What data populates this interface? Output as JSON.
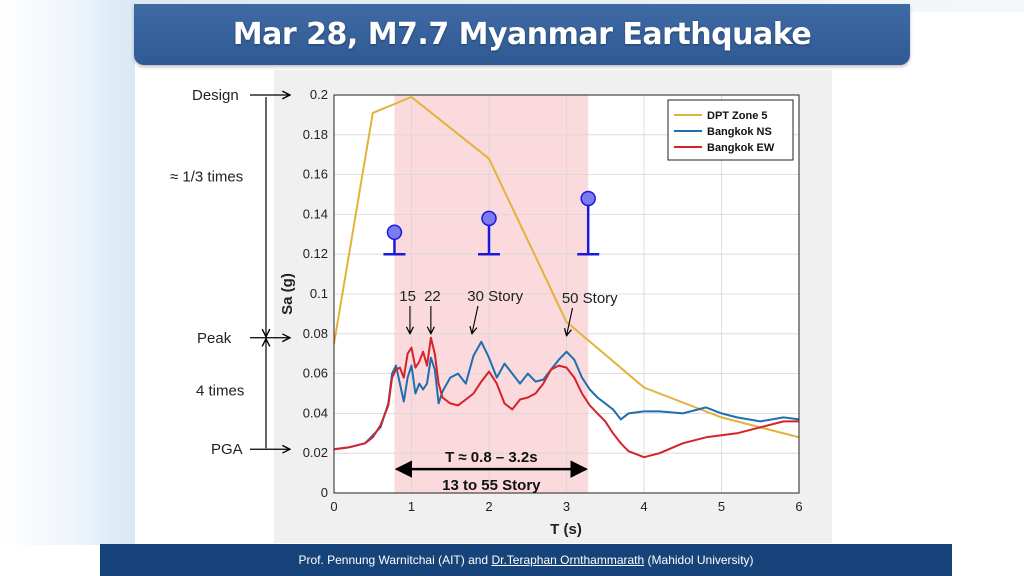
{
  "slide": {
    "title": "Mar 28, M7.7 Myanmar Earthquake",
    "footer": {
      "author1": "Prof. Pennung Warnitchai (AIT) and ",
      "author2": "Dr.Teraphan Ornthammarath",
      "affiliation": " (Mahidol University)"
    }
  },
  "chart_data": {
    "type": "line",
    "xlabel": "T (s)",
    "ylabel": "Sa (g)",
    "xlim": [
      0,
      6
    ],
    "ylim": [
      0,
      0.2
    ],
    "xticks": [
      "0",
      "1",
      "2",
      "3",
      "4",
      "5",
      "6"
    ],
    "yticks": [
      "0",
      "0.02",
      "0.04",
      "0.06",
      "0.08",
      "0.1",
      "0.12",
      "0.14",
      "0.16",
      "0.18",
      "0.2"
    ],
    "grid": true,
    "legend_position": "top-right",
    "shaded_band": {
      "x": [
        0.78,
        3.28
      ],
      "color": "#f9d3d6"
    },
    "series": [
      {
        "name": "DPT Zone 5",
        "color": "#e3b23c",
        "x": [
          0,
          0.5,
          1.0,
          2.0,
          3.0,
          4.0,
          5.0,
          6.0
        ],
        "y": [
          0.075,
          0.191,
          0.199,
          0.168,
          0.086,
          0.053,
          0.038,
          0.028
        ]
      },
      {
        "name": "Bangkok NS",
        "color": "#1f6fb0",
        "x": [
          0,
          0.2,
          0.4,
          0.5,
          0.6,
          0.7,
          0.75,
          0.8,
          0.85,
          0.9,
          0.95,
          1.0,
          1.05,
          1.1,
          1.15,
          1.2,
          1.25,
          1.3,
          1.35,
          1.4,
          1.5,
          1.6,
          1.7,
          1.8,
          1.9,
          2.0,
          2.1,
          2.2,
          2.3,
          2.4,
          2.5,
          2.6,
          2.7,
          2.8,
          2.9,
          3.0,
          3.1,
          3.2,
          3.3,
          3.4,
          3.5,
          3.6,
          3.7,
          3.8,
          4.0,
          4.2,
          4.5,
          4.8,
          5.0,
          5.2,
          5.5,
          5.8,
          6.0
        ],
        "y": [
          0.022,
          0.023,
          0.025,
          0.029,
          0.033,
          0.045,
          0.06,
          0.064,
          0.055,
          0.046,
          0.058,
          0.064,
          0.05,
          0.055,
          0.052,
          0.055,
          0.068,
          0.062,
          0.045,
          0.051,
          0.058,
          0.06,
          0.055,
          0.069,
          0.076,
          0.068,
          0.058,
          0.065,
          0.06,
          0.055,
          0.06,
          0.056,
          0.057,
          0.062,
          0.067,
          0.071,
          0.067,
          0.058,
          0.052,
          0.048,
          0.045,
          0.042,
          0.037,
          0.04,
          0.041,
          0.041,
          0.04,
          0.043,
          0.04,
          0.038,
          0.036,
          0.038,
          0.037
        ]
      },
      {
        "name": "Bangkok EW",
        "color": "#d4232a",
        "x": [
          0,
          0.2,
          0.4,
          0.5,
          0.6,
          0.7,
          0.75,
          0.8,
          0.85,
          0.9,
          0.95,
          1.0,
          1.05,
          1.1,
          1.15,
          1.2,
          1.25,
          1.3,
          1.35,
          1.4,
          1.5,
          1.6,
          1.7,
          1.8,
          1.9,
          2.0,
          2.1,
          2.2,
          2.3,
          2.4,
          2.5,
          2.6,
          2.7,
          2.8,
          2.9,
          3.0,
          3.1,
          3.2,
          3.3,
          3.4,
          3.5,
          3.6,
          3.7,
          3.8,
          4.0,
          4.2,
          4.5,
          4.8,
          5.0,
          5.2,
          5.5,
          5.8,
          6.0
        ],
        "y": [
          0.022,
          0.023,
          0.025,
          0.028,
          0.034,
          0.044,
          0.058,
          0.062,
          0.063,
          0.058,
          0.07,
          0.073,
          0.063,
          0.066,
          0.071,
          0.064,
          0.078,
          0.07,
          0.055,
          0.048,
          0.045,
          0.044,
          0.047,
          0.05,
          0.056,
          0.061,
          0.055,
          0.045,
          0.042,
          0.047,
          0.048,
          0.05,
          0.055,
          0.062,
          0.064,
          0.063,
          0.058,
          0.05,
          0.044,
          0.04,
          0.036,
          0.03,
          0.025,
          0.021,
          0.018,
          0.02,
          0.025,
          0.028,
          0.029,
          0.03,
          0.033,
          0.036,
          0.036
        ]
      }
    ],
    "building_markers": [
      {
        "x": 0.78,
        "y": 0.131
      },
      {
        "x": 2.0,
        "y": 0.138
      },
      {
        "x": 3.28,
        "y": 0.148
      }
    ],
    "annotations": [
      {
        "id": "story-15",
        "text": "15",
        "label_x": 0.95,
        "label_y": 0.099,
        "arrow_to": [
          0.98,
          0.08
        ]
      },
      {
        "id": "story-22",
        "text": "22",
        "label_x": 1.27,
        "label_y": 0.099,
        "arrow_to": [
          1.25,
          0.08
        ]
      },
      {
        "id": "story-30",
        "text": "30 Story",
        "label_x": 2.08,
        "label_y": 0.099,
        "arrow_to": [
          1.78,
          0.08
        ]
      },
      {
        "id": "story-50",
        "text": "50 Story",
        "label_x": 3.3,
        "label_y": 0.098,
        "arrow_to": [
          3.0,
          0.079
        ]
      }
    ],
    "period_range": {
      "line1": "T ≈ 0.8 – 3.2s",
      "line2": "13 to 55 Story",
      "x_from": 0.78,
      "x_to": 3.28,
      "y": 0.012
    },
    "left_annotations": {
      "design": "Design",
      "peak": "Peak",
      "pga": "PGA",
      "ratio_upper": "≈ 1/3 times",
      "ratio_lower": "4 times",
      "design_value": 0.2,
      "peak_value": 0.078,
      "pga_value": 0.022
    }
  }
}
